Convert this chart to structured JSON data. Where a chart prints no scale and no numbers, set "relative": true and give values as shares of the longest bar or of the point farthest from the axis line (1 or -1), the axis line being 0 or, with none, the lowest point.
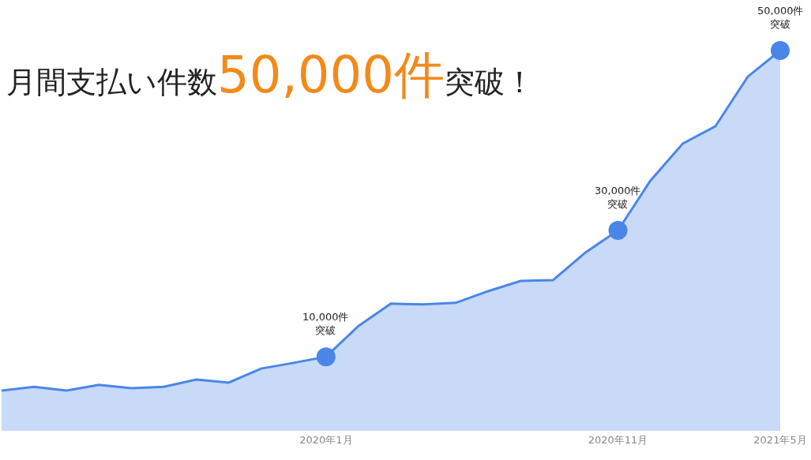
{
  "chart_data": {
    "type": "area",
    "title": "月間支払い件数50,000件突破！",
    "relative": true,
    "categories": [
      null,
      null,
      null,
      null,
      null,
      null,
      null,
      null,
      null,
      null,
      "2020年1月",
      null,
      null,
      null,
      null,
      null,
      null,
      null,
      null,
      "2020年11月",
      null,
      null,
      null,
      null,
      "2021年5月"
    ],
    "series": [
      {
        "color": "#4a86e8",
        "values": [
          0.104,
          0.114,
          0.104,
          0.119,
          0.11,
          0.114,
          0.133,
          0.125,
          0.162,
          0.177,
          0.193,
          0.274,
          0.333,
          0.331,
          0.335,
          0.366,
          0.393,
          0.395,
          0.468,
          0.526,
          0.657,
          0.755,
          0.8,
          0.931,
          1
        ]
      }
    ],
    "annotations": [
      {
        "text": "10,000件突破",
        "x": "2020年1月",
        "y": 0.193
      },
      {
        "text": "30,000件突破",
        "x": "2020年11月",
        "y": 0.526
      },
      {
        "text": "50,000件突破",
        "x": "2021年5月",
        "y": 1
      }
    ],
    "grid": false,
    "marker": "none"
  }
}
